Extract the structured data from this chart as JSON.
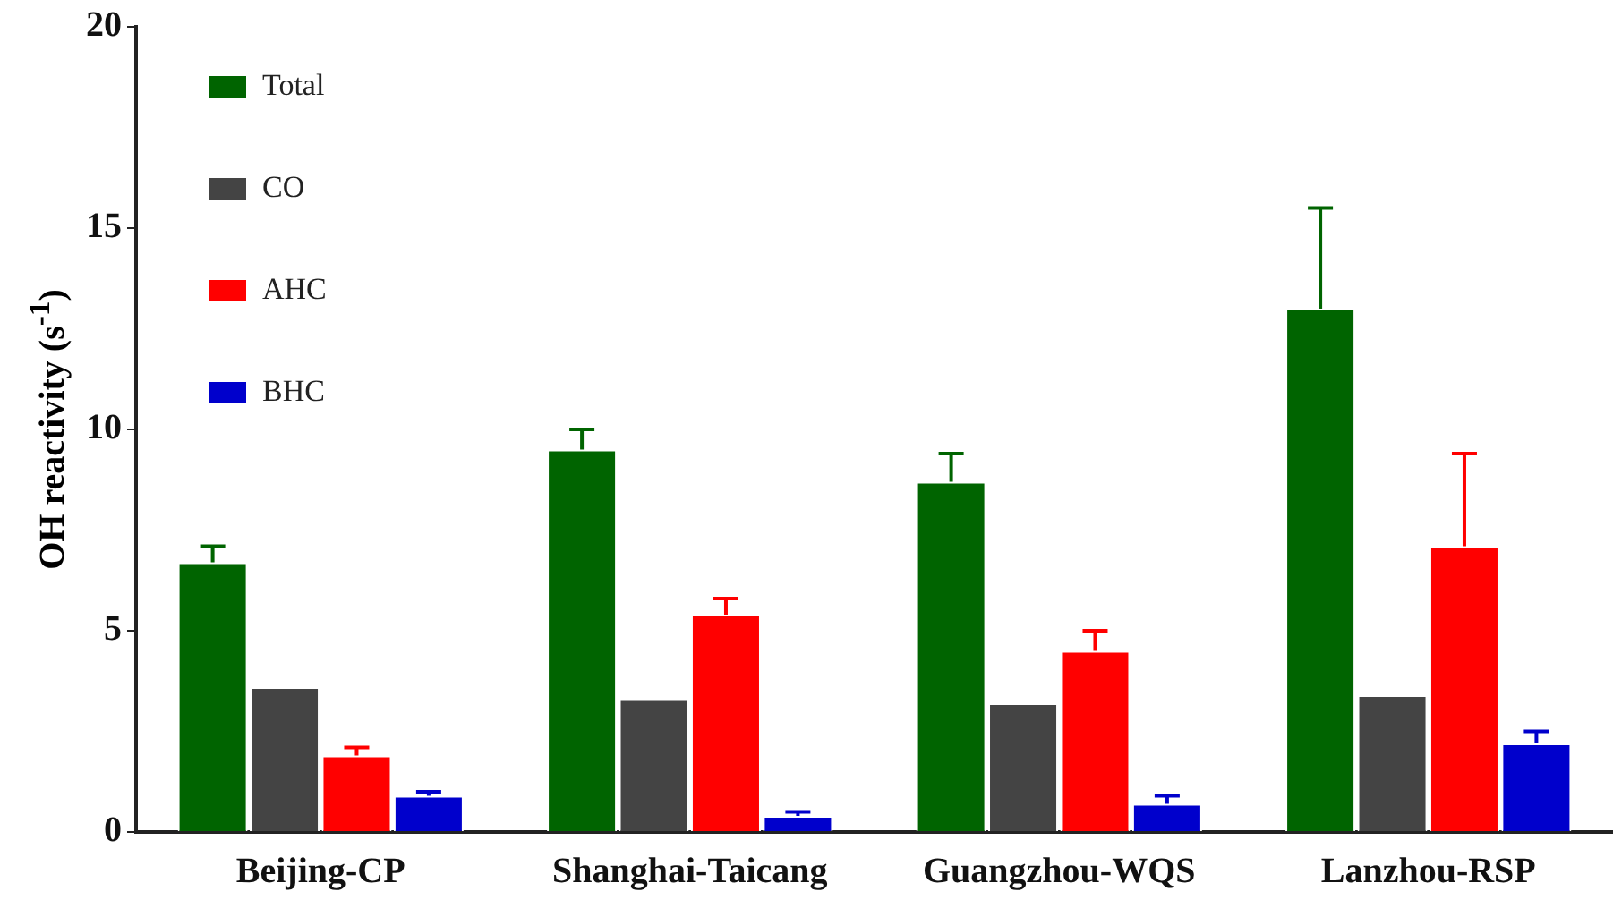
{
  "chart_data": {
    "type": "bar",
    "ylabel": "OH reactivity (s$^{-1}$)",
    "categories": [
      "Beijing-CP",
      "Shanghai-Taicang",
      "Guangzhou-WQS",
      "Lanzhou-RSP"
    ],
    "series": [
      {
        "name": "Total",
        "color": "#006400",
        "values": [
          6.7,
          9.5,
          8.7,
          13.0
        ],
        "errors": [
          0.4,
          0.5,
          0.7,
          2.5
        ]
      },
      {
        "name": "CO",
        "color": "#444444",
        "values": [
          3.6,
          3.3,
          3.2,
          3.4
        ]
      },
      {
        "name": "AHC",
        "color": "#ff0000",
        "values": [
          1.9,
          5.4,
          4.5,
          7.1
        ],
        "errors": [
          0.2,
          0.4,
          0.5,
          2.3
        ]
      },
      {
        "name": "BHC",
        "color": "#0000cc",
        "values": [
          0.9,
          0.4,
          0.7,
          2.2
        ],
        "errors": [
          0.1,
          0.1,
          0.2,
          0.3
        ]
      }
    ],
    "ylim": [
      0,
      20
    ],
    "yticks": [
      0,
      5,
      10,
      15,
      20
    ],
    "grid": false,
    "legend": "top left"
  }
}
